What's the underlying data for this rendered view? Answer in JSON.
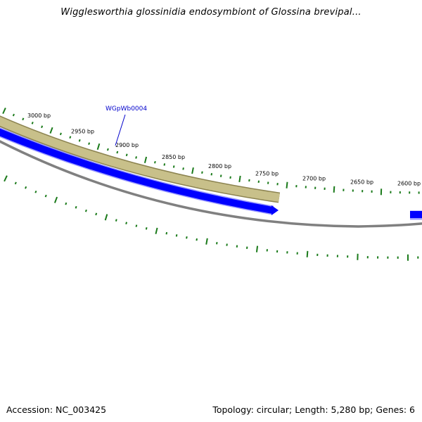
{
  "title": "Wigglesworthia glossinidia endosymbiont of Glossina brevipal...",
  "footer": {
    "accession": "Accession: NC_003425",
    "summary": "Topology: circular; Length: 5,280 bp; Genes: 6"
  },
  "ticks": [
    {
      "label": "3000 bp",
      "bp": 3000
    },
    {
      "label": "2950 bp",
      "bp": 2950
    },
    {
      "label": "2900 bp",
      "bp": 2900
    },
    {
      "label": "2850 bp",
      "bp": 2850
    },
    {
      "label": "2800 bp",
      "bp": 2800
    },
    {
      "label": "2750 bp",
      "bp": 2750
    },
    {
      "label": "2700 bp",
      "bp": 2700
    },
    {
      "label": "2650 bp",
      "bp": 2650
    },
    {
      "label": "2600 bp",
      "bp": 2600
    }
  ],
  "features": [
    {
      "name": "WGpWb0004",
      "label": "WGpWb0004",
      "color": "#0000ff"
    }
  ],
  "colors": {
    "gene_fill": "#0000ff",
    "gene_edge": "#9999ff",
    "cds_fill": "#c8c08a",
    "cds_edge": "#8c8350",
    "backbone": "#808080",
    "ticks": "#1a7a1a",
    "label_line": "#0000cc"
  }
}
